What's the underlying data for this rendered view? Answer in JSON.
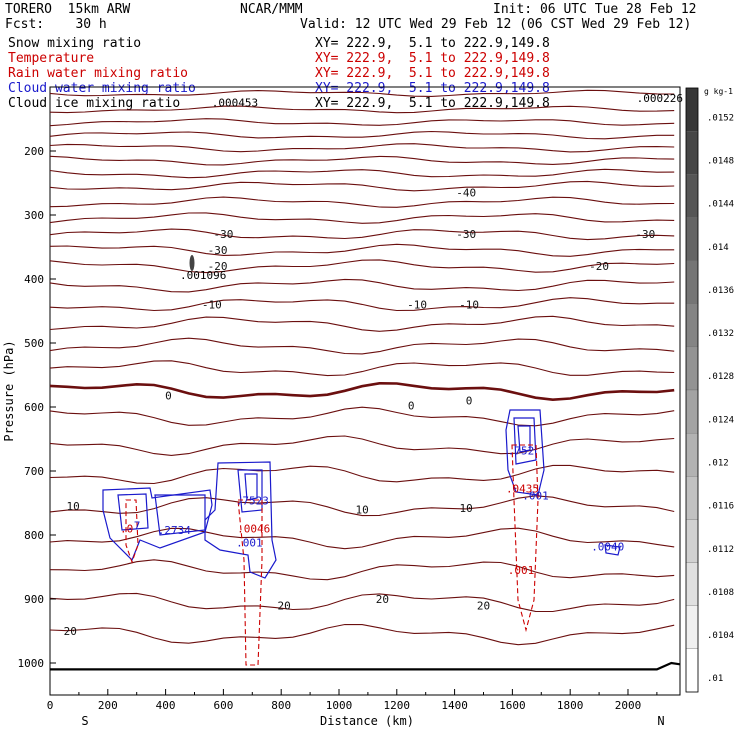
{
  "header": {
    "model": "TORERO  15km ARW",
    "org": "NCAR/MMM",
    "init": "Init: 06 UTC Tue 28 Feb 12",
    "fcst": "Fcst:    30 h",
    "valid": "Valid: 12 UTC Wed 29 Feb 12 (06 CST Wed 29 Feb 12)"
  },
  "fields": [
    {
      "name": "Snow mixing ratio",
      "color": "#000000",
      "xy": "XY= 222.9,  5.1 to 222.9,149.8"
    },
    {
      "name": "Temperature",
      "color": "#cc0000",
      "xy": "XY= 222.9,  5.1 to 222.9,149.8"
    },
    {
      "name": "Rain water mixing ratio",
      "color": "#cc0000",
      "xy": "XY= 222.9,  5.1 to 222.9,149.8"
    },
    {
      "name": "Cloud water mixing ratio",
      "color": "#1a1acc",
      "xy": "XY= 222.9,  5.1 to 222.9,149.8"
    },
    {
      "name": "Cloud ice mixing ratio",
      "color": "#000000",
      "xy": "XY= 222.9,  5.1 to 222.9,149.8"
    }
  ],
  "chart_data": {
    "type": "line",
    "title": "",
    "xlabel": "Distance (km)",
    "ylabel": "Pressure (hPa)",
    "xlim": [
      0,
      2180
    ],
    "ylim": [
      1050,
      100
    ],
    "x_ticks": [
      0,
      200,
      400,
      600,
      800,
      1000,
      1200,
      1400,
      1600,
      1800,
      2000
    ],
    "y_ticks": [
      200,
      300,
      400,
      500,
      600,
      700,
      800,
      900,
      1000
    ],
    "direction_labels": {
      "left": "S",
      "right": "N"
    },
    "temperature_isotherms": [
      {
        "p": 110
      },
      {
        "p": 135
      },
      {
        "p": 155
      },
      {
        "p": 175
      },
      {
        "p": 195
      },
      {
        "p": 215
      },
      {
        "p": 235
      },
      {
        "p": 255
      },
      {
        "p": 280
      },
      {
        "p": 305
      },
      {
        "p": 330
      },
      {
        "p": 355
      },
      {
        "p": 380
      },
      {
        "p": 410
      },
      {
        "p": 440
      },
      {
        "p": 470
      },
      {
        "p": 505
      },
      {
        "p": 540
      },
      {
        "p": 575,
        "bold": true
      },
      {
        "p": 615
      },
      {
        "p": 660
      },
      {
        "p": 705
      },
      {
        "p": 755
      },
      {
        "p": 805
      },
      {
        "p": 855
      },
      {
        "p": 905
      },
      {
        "p": 955
      }
    ],
    "contour_labels": [
      {
        "x": 1440,
        "p": 265,
        "text": "-40"
      },
      {
        "x": 600,
        "p": 330,
        "text": "-30"
      },
      {
        "x": 1440,
        "p": 330,
        "text": "-30"
      },
      {
        "x": 2060,
        "p": 330,
        "text": "-30"
      },
      {
        "x": 580,
        "p": 355,
        "text": "-30"
      },
      {
        "x": 580,
        "p": 380,
        "text": "-20"
      },
      {
        "x": 1900,
        "p": 380,
        "text": "-20"
      },
      {
        "x": 560,
        "p": 440,
        "text": "-10"
      },
      {
        "x": 1270,
        "p": 440,
        "text": "-10"
      },
      {
        "x": 1450,
        "p": 440,
        "text": "-10"
      },
      {
        "x": 410,
        "p": 582,
        "text": "0"
      },
      {
        "x": 1250,
        "p": 598,
        "text": "0"
      },
      {
        "x": 1450,
        "p": 590,
        "text": "0"
      },
      {
        "x": 80,
        "p": 755,
        "text": "10"
      },
      {
        "x": 1080,
        "p": 760,
        "text": "10"
      },
      {
        "x": 1440,
        "p": 758,
        "text": "10"
      },
      {
        "x": 810,
        "p": 910,
        "text": "20"
      },
      {
        "x": 1150,
        "p": 900,
        "text": "20"
      },
      {
        "x": 1500,
        "p": 910,
        "text": "20"
      },
      {
        "x": 70,
        "p": 950,
        "text": "20"
      }
    ],
    "max_labels": [
      {
        "x": 290,
        "p": 785,
        "text": ".7"
      },
      {
        "x": 430,
        "p": 792,
        "text": ".2734"
      },
      {
        "x": 700,
        "p": 746,
        "text": ".7523"
      },
      {
        "x": 1630,
        "p": 668,
        "text": ".752"
      },
      {
        "x": 1680,
        "p": 738,
        "text": ".001"
      },
      {
        "x": 1930,
        "p": 818,
        "text": ".0040"
      },
      {
        "x": 690,
        "p": 812,
        "text": ".001"
      },
      {
        "x": 530,
        "p": 394,
        "text": ".001096"
      },
      {
        "x": 640,
        "p": 124,
        "text": ".000453"
      },
      {
        "x": 2110,
        "p": 117,
        "text": ".000226"
      }
    ],
    "rain_labels": [
      {
        "x": 265,
        "p": 790,
        "text": ".0"
      },
      {
        "x": 705,
        "p": 790,
        "text": ".0046"
      },
      {
        "x": 1635,
        "p": 727,
        "text": ".0435"
      },
      {
        "x": 1630,
        "p": 855,
        "text": ".001"
      }
    ],
    "colorbar": {
      "unit": "g kg-1",
      "ticks": [
        ".0152",
        ".0148",
        ".0144",
        ".014",
        ".0136",
        ".0132",
        ".0128",
        ".0124",
        ".012",
        ".0116",
        ".0112",
        ".0108",
        ".0104",
        ".01"
      ]
    }
  }
}
